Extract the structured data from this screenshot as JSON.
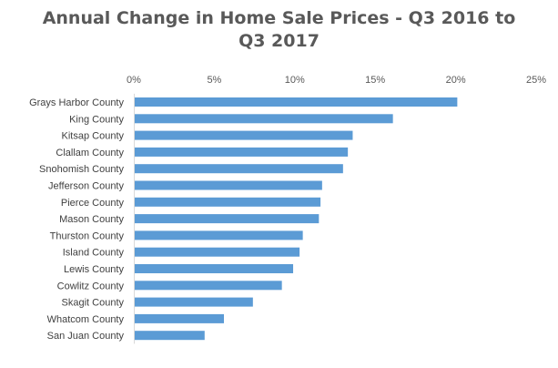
{
  "chart_data": {
    "type": "bar",
    "orientation": "horizontal",
    "title_lines": [
      "Annual Change in Home Sale Prices - Q3 2016 to",
      "Q3 2017"
    ],
    "xlabel": "",
    "ylabel": "",
    "xlim": [
      0,
      25
    ],
    "x_ticks": [
      0,
      5,
      10,
      15,
      20,
      25
    ],
    "x_tick_labels": [
      "0%",
      "5%",
      "10%",
      "15%",
      "20%",
      "25%"
    ],
    "x_axis_position": "top",
    "grid": false,
    "bar_color": "#5B9BD5",
    "categories": [
      "Grays Harbor County",
      "King County",
      "Kitsap County",
      "Clallam County",
      "Snohomish County",
      "Jefferson County",
      "Pierce County",
      "Mason County",
      "Thurston County",
      "Island County",
      "Lewis County",
      "Cowlitz County",
      "Skagit County",
      "Whatcom County",
      "San Juan County"
    ],
    "values": [
      20.1,
      16.1,
      13.6,
      13.3,
      13.0,
      11.7,
      11.6,
      11.5,
      10.5,
      10.3,
      9.9,
      9.2,
      7.4,
      5.6,
      4.4
    ],
    "units": "%"
  }
}
